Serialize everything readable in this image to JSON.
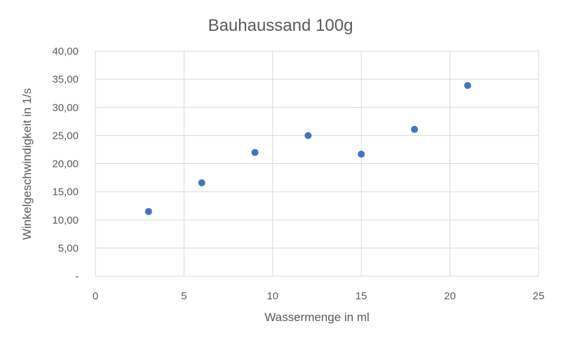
{
  "chart_data": {
    "type": "scatter",
    "title": "Bauhaussand 100g",
    "xlabel": "Wassermenge in ml",
    "ylabel": "Winkelgeschwindigkeit in 1/s",
    "xlim": [
      0,
      25
    ],
    "ylim": [
      0,
      40
    ],
    "xticks": [
      "0",
      "5",
      "10",
      "15",
      "20",
      "25"
    ],
    "yticks": [
      "-",
      "5,00",
      "10,00",
      "15,00",
      "20,00",
      "25,00",
      "30,00",
      "35,00",
      "40,00"
    ],
    "grid": true,
    "legend": null,
    "series": [
      {
        "name": "Bauhaussand 100g",
        "color": "#4472C4",
        "x": [
          3,
          6,
          9,
          12,
          15,
          18,
          21
        ],
        "y": [
          11.5,
          16.6,
          22.0,
          25.0,
          21.7,
          26.1,
          33.9
        ]
      }
    ]
  }
}
